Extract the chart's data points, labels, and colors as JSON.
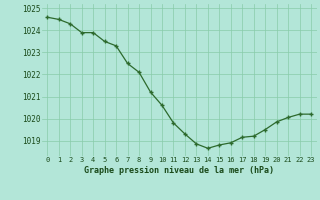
{
  "x": [
    0,
    1,
    2,
    3,
    4,
    5,
    6,
    7,
    8,
    9,
    10,
    11,
    12,
    13,
    14,
    15,
    16,
    17,
    18,
    19,
    20,
    21,
    22,
    23
  ],
  "y": [
    1024.6,
    1024.5,
    1024.3,
    1023.9,
    1023.9,
    1023.5,
    1023.3,
    1022.5,
    1022.1,
    1021.2,
    1020.6,
    1019.8,
    1019.3,
    1018.85,
    1018.65,
    1018.8,
    1018.9,
    1019.15,
    1019.2,
    1019.5,
    1019.85,
    1020.05,
    1020.2,
    1020.2
  ],
  "line_color": "#2d6a2d",
  "marker": "+",
  "marker_color": "#2d6a2d",
  "bg_color": "#b3e6d8",
  "grid_color": "#88ccaa",
  "xlabel": "Graphe pression niveau de la mer (hPa)",
  "xlabel_color": "#1a4a1a",
  "tick_color": "#1a4a1a",
  "ylim": [
    1018.3,
    1025.2
  ],
  "yticks": [
    1019,
    1020,
    1021,
    1022,
    1023,
    1024,
    1025
  ],
  "xticks": [
    0,
    1,
    2,
    3,
    4,
    5,
    6,
    7,
    8,
    9,
    10,
    11,
    12,
    13,
    14,
    15,
    16,
    17,
    18,
    19,
    20,
    21,
    22,
    23
  ],
  "xtick_labels": [
    "0",
    "1",
    "2",
    "3",
    "4",
    "5",
    "6",
    "7",
    "8",
    "9",
    "10",
    "11",
    "12",
    "13",
    "14",
    "15",
    "16",
    "17",
    "18",
    "19",
    "20",
    "21",
    "22",
    "23"
  ]
}
